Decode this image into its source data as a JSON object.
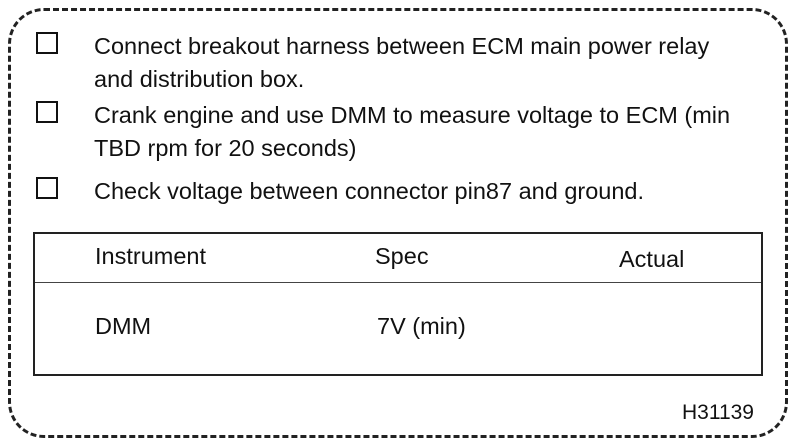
{
  "checklist": [
    {
      "text": "Connect breakout harness between ECM main power relay and distribution box."
    },
    {
      "text": "Crank engine and use DMM to measure voltage to ECM (min TBD rpm  for 20 seconds)"
    },
    {
      "text": "Check voltage between connector pin87 and ground."
    }
  ],
  "table": {
    "headers": {
      "instrument": "Instrument",
      "spec": "Spec",
      "actual": "Actual"
    },
    "rows": [
      {
        "instrument": "DMM",
        "spec": "7V (min)",
        "actual": ""
      }
    ]
  },
  "figure_id": "H31139"
}
